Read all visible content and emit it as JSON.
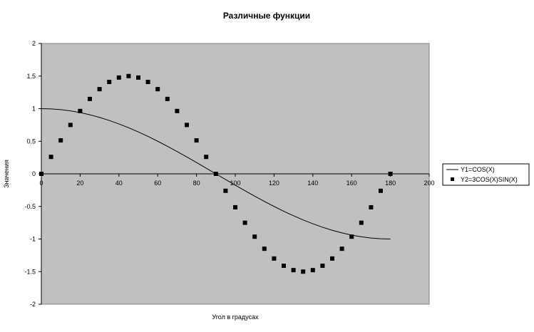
{
  "chart_data": {
    "type": "line",
    "title": "Различные функции",
    "xlabel": "Угол в градусах",
    "ylabel": "Значения",
    "xlim": [
      0,
      200
    ],
    "ylim": [
      -2,
      2
    ],
    "xticks": [
      "0",
      "20",
      "40",
      "60",
      "80",
      "100",
      "120",
      "140",
      "160",
      "180",
      "200"
    ],
    "yticks": [
      "2",
      "1.5",
      "1",
      "0.5",
      "0",
      "-0.5",
      "-1",
      "-1.5",
      "-2"
    ],
    "grid": false,
    "legend_position": "right",
    "plot_background": "#c0c0c0",
    "x": [
      0,
      5,
      10,
      15,
      20,
      25,
      30,
      35,
      40,
      45,
      50,
      55,
      60,
      65,
      70,
      75,
      80,
      85,
      90,
      95,
      100,
      105,
      110,
      115,
      120,
      125,
      130,
      135,
      140,
      145,
      150,
      155,
      160,
      165,
      170,
      175,
      180
    ],
    "series": [
      {
        "name": "Y1=COS(X)",
        "style": "line",
        "color": "#000000",
        "values": [
          1,
          0.996,
          0.985,
          0.966,
          0.94,
          0.906,
          0.866,
          0.819,
          0.766,
          0.707,
          0.643,
          0.574,
          0.5,
          0.423,
          0.342,
          0.259,
          0.174,
          0.087,
          0,
          -0.087,
          -0.174,
          -0.259,
          -0.342,
          -0.423,
          -0.5,
          -0.574,
          -0.643,
          -0.707,
          -0.766,
          -0.819,
          -0.866,
          -0.906,
          -0.94,
          -0.966,
          -0.985,
          -0.996,
          -1
        ]
      },
      {
        "name": "Y2=3COS(X)SIN(X)",
        "style": "markers",
        "color": "#000000",
        "values": [
          0,
          0.26,
          0.513,
          0.75,
          0.964,
          1.149,
          1.299,
          1.41,
          1.477,
          1.5,
          1.477,
          1.41,
          1.299,
          1.149,
          0.964,
          0.75,
          0.513,
          0.26,
          0,
          -0.26,
          -0.513,
          -0.75,
          -0.964,
          -1.149,
          -1.299,
          -1.41,
          -1.477,
          -1.5,
          -1.477,
          -1.41,
          -1.299,
          -1.149,
          -0.964,
          -0.75,
          -0.513,
          -0.26,
          0
        ]
      }
    ]
  }
}
